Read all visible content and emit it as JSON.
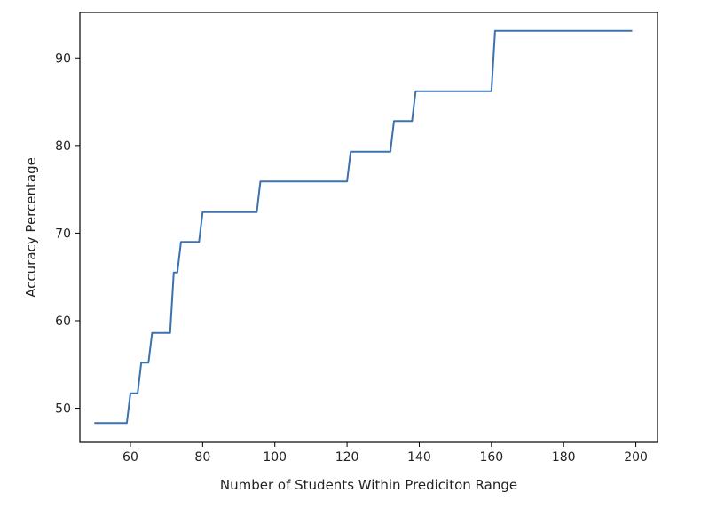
{
  "chart_data": {
    "type": "line",
    "title": "",
    "xlabel": "Number of Students Within Prediciton Range",
    "ylabel": "Accuracy Percentage",
    "xlim": [
      46,
      206
    ],
    "ylim": [
      46.1,
      95.2
    ],
    "xticks": [
      60,
      80,
      100,
      120,
      140,
      160,
      180,
      200
    ],
    "yticks": [
      50,
      60,
      70,
      80,
      90
    ],
    "grid": false,
    "colors": {
      "line": "#3c72b0",
      "axes": "#000000"
    },
    "series": [
      {
        "x": [
          50,
          59,
          60,
          62,
          63,
          65,
          66,
          71,
          72,
          73,
          74,
          79,
          80,
          95,
          96,
          120,
          121,
          132,
          133,
          138,
          139,
          160,
          161,
          199
        ],
        "y": [
          48.3,
          48.3,
          51.7,
          51.7,
          55.2,
          55.2,
          58.6,
          58.6,
          65.5,
          65.5,
          69.0,
          69.0,
          72.4,
          72.4,
          75.9,
          75.9,
          79.3,
          79.3,
          82.8,
          82.8,
          86.2,
          86.2,
          93.1,
          93.1
        ]
      }
    ]
  }
}
